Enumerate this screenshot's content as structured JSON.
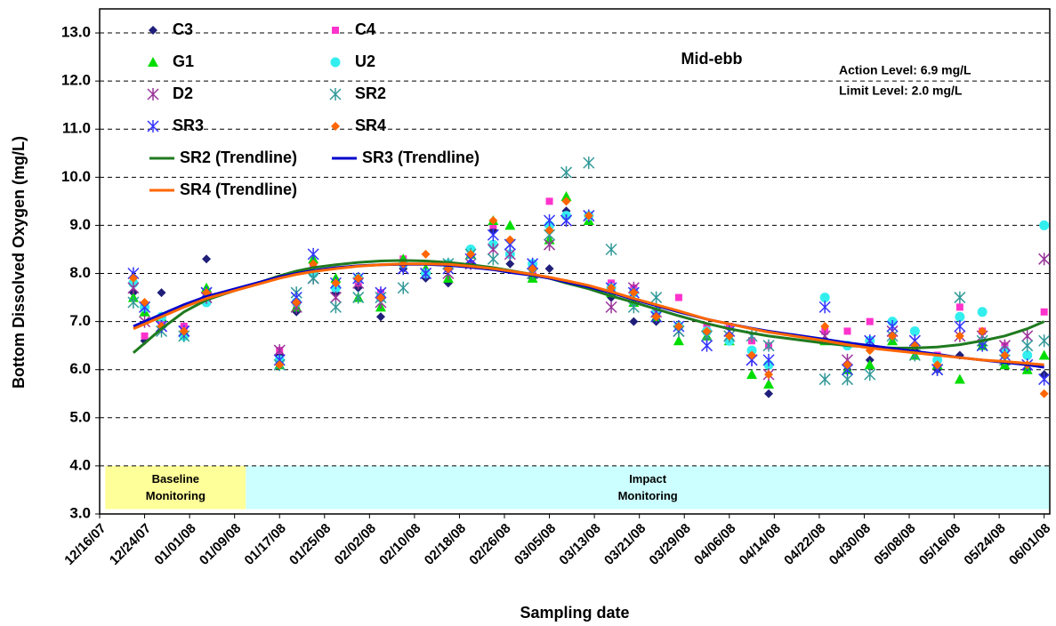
{
  "chart_data": {
    "type": "scatter",
    "title": "Mid-ebb",
    "annotations": [
      "Action Level: 6.9 mg/L",
      "Limit Level: 2.0 mg/L"
    ],
    "x_label": "Sampling date",
    "y_label": "Bottom Dissolved Oxygen (mg/L)",
    "xlim": [
      "12/16/07",
      "06/02/08"
    ],
    "xticks": [
      "12/16/07",
      "12/24/07",
      "01/01/08",
      "01/09/08",
      "01/17/08",
      "01/25/08",
      "02/02/08",
      "02/10/08",
      "02/18/08",
      "02/26/08",
      "03/05/08",
      "03/13/08",
      "03/21/08",
      "03/29/08",
      "04/06/08",
      "04/14/08",
      "04/22/08",
      "04/30/08",
      "05/08/08",
      "05/16/08",
      "05/24/08",
      "06/01/08"
    ],
    "ylim": [
      3,
      13.5
    ],
    "yticks": [
      {
        "value": 3,
        "label": "3.0"
      },
      {
        "value": 4,
        "label": "4.0"
      },
      {
        "value": 5,
        "label": "5.0"
      },
      {
        "value": 6,
        "label": "6.0"
      },
      {
        "value": 7,
        "label": "7.0"
      },
      {
        "value": 8,
        "label": "8.0"
      },
      {
        "value": 9,
        "label": "9.0"
      },
      {
        "value": 10,
        "label": "10.0"
      },
      {
        "value": 11,
        "label": "11.0"
      },
      {
        "value": 12,
        "label": "12.0"
      },
      {
        "value": 13,
        "label": "13.0"
      }
    ],
    "grid": true,
    "legend": "top-left",
    "regions": [
      {
        "label": "Baseline Monitoring",
        "x": [
          "12/17/07",
          "01/11/08"
        ],
        "y": [
          3.1,
          4.0
        ],
        "color": "#ffff99"
      },
      {
        "label": "Impact Monitoring",
        "x": [
          "01/11/08",
          "06/02/08"
        ],
        "y": [
          3.1,
          4.0
        ],
        "color": "#ccffff"
      }
    ],
    "x": [
      "12/22/07",
      "12/24/07",
      "12/27/07",
      "12/31/07",
      "01/04/08",
      "01/17/08",
      "01/20/08",
      "01/23/08",
      "01/27/08",
      "01/31/08",
      "02/04/08",
      "02/08/08",
      "02/12/08",
      "02/16/08",
      "02/20/08",
      "02/24/08",
      "02/27/08",
      "03/02/08",
      "03/05/08",
      "03/08/08",
      "03/12/08",
      "03/16/08",
      "03/20/08",
      "03/24/08",
      "03/28/08",
      "04/02/08",
      "04/06/08",
      "04/10/08",
      "04/13/08",
      "04/23/08",
      "04/27/08",
      "05/01/08",
      "05/05/08",
      "05/09/08",
      "05/13/08",
      "05/17/08",
      "05/21/08",
      "05/25/08",
      "05/29/08",
      "06/01/08"
    ],
    "series": [
      {
        "name": "C3",
        "color": "#1f1f7a",
        "marker": "diamond",
        "values": [
          7.6,
          6.6,
          7.6,
          6.9,
          8.3,
          6.3,
          7.2,
          8.0,
          7.6,
          7.7,
          7.1,
          8.1,
          7.9,
          7.8,
          8.2,
          8.9,
          8.2,
          7.9,
          8.1,
          9.3,
          9.2,
          7.5,
          7.0,
          7.0,
          6.9,
          6.8,
          6.7,
          6.3,
          5.5,
          6.6,
          6.0,
          6.2,
          6.7,
          6.4,
          6.0,
          6.3,
          6.5,
          6.1,
          6.0,
          5.9
        ]
      },
      {
        "name": "C4",
        "color": "#ff33cc",
        "marker": "square",
        "values": [
          7.8,
          6.7,
          7.0,
          6.9,
          7.5,
          6.4,
          7.3,
          8.2,
          7.8,
          7.8,
          7.6,
          8.3,
          8.0,
          8.2,
          8.4,
          9.0,
          8.4,
          8.0,
          9.5,
          9.2,
          9.2,
          7.8,
          7.7,
          7.2,
          7.5,
          6.9,
          6.9,
          6.6,
          6.5,
          6.8,
          6.8,
          7.0,
          6.7,
          6.8,
          6.3,
          7.3,
          6.8,
          6.5,
          6.3,
          7.2
        ]
      },
      {
        "name": "G1",
        "color": "#00dd00",
        "marker": "triangle",
        "values": [
          7.5,
          7.2,
          7.1,
          6.8,
          7.7,
          6.1,
          7.3,
          8.3,
          7.9,
          7.5,
          7.3,
          8.3,
          8.1,
          7.9,
          8.4,
          9.1,
          9.0,
          7.9,
          8.7,
          9.6,
          9.1,
          7.6,
          7.4,
          7.1,
          6.6,
          6.7,
          6.6,
          5.9,
          5.7,
          6.6,
          6.0,
          6.1,
          6.6,
          6.3,
          6.1,
          5.8,
          6.5,
          6.1,
          6.0,
          6.3
        ]
      },
      {
        "name": "U2",
        "color": "#33eeee",
        "marker": "circle",
        "values": [
          7.8,
          7.3,
          7.1,
          6.7,
          7.4,
          6.2,
          7.4,
          8.0,
          7.7,
          7.9,
          7.5,
          8.2,
          8.0,
          8.2,
          8.5,
          8.6,
          8.4,
          8.2,
          9.0,
          9.2,
          9.2,
          7.7,
          7.6,
          7.2,
          6.9,
          6.8,
          6.6,
          6.4,
          6.1,
          7.5,
          6.5,
          6.6,
          7.0,
          6.8,
          6.2,
          7.1,
          7.2,
          6.4,
          6.3,
          9.0
        ]
      },
      {
        "name": "D2",
        "color": "#993399",
        "marker": "star",
        "values": [
          7.7,
          7.0,
          6.9,
          6.8,
          7.5,
          6.4,
          7.3,
          7.9,
          7.5,
          7.8,
          7.4,
          8.1,
          8.0,
          8.0,
          8.2,
          8.5,
          8.4,
          8.0,
          8.6,
          9.1,
          9.2,
          7.3,
          7.7,
          7.2,
          6.8,
          6.7,
          6.7,
          6.2,
          5.9,
          6.7,
          6.2,
          6.6,
          6.8,
          6.6,
          6.0,
          6.7,
          6.7,
          6.5,
          6.7,
          8.3
        ]
      },
      {
        "name": "SR2",
        "color": "#339999",
        "marker": "star",
        "values": [
          7.4,
          7.3,
          6.8,
          6.7,
          7.6,
          6.1,
          7.6,
          7.9,
          7.3,
          7.5,
          7.5,
          7.7,
          8.0,
          8.2,
          8.4,
          8.3,
          8.6,
          8.0,
          8.8,
          10.1,
          10.3,
          8.5,
          7.3,
          7.5,
          6.8,
          6.7,
          6.7,
          6.7,
          6.5,
          5.8,
          5.8,
          5.9,
          6.7,
          6.3,
          6.0,
          7.5,
          6.6,
          6.2,
          6.5,
          6.6
        ]
      },
      {
        "name": "SR3",
        "color": "#3333ff",
        "marker": "star",
        "values": [
          8.0,
          7.3,
          6.9,
          6.8,
          7.6,
          6.2,
          7.5,
          8.4,
          7.8,
          7.9,
          7.6,
          8.1,
          8.0,
          8.1,
          8.3,
          8.8,
          8.6,
          8.2,
          9.1,
          9.1,
          9.2,
          7.7,
          7.6,
          7.1,
          6.9,
          6.5,
          6.8,
          6.2,
          6.2,
          7.3,
          6.0,
          6.6,
          6.9,
          6.6,
          6.0,
          6.9,
          6.5,
          6.3,
          6.1,
          5.8
        ]
      },
      {
        "name": "SR4",
        "color": "#ff6600",
        "marker": "diamond",
        "values": [
          7.9,
          7.4,
          6.9,
          6.8,
          7.6,
          6.1,
          7.4,
          8.2,
          7.8,
          7.9,
          7.5,
          8.2,
          8.4,
          8.1,
          8.4,
          9.1,
          8.7,
          8.1,
          8.9,
          9.5,
          9.2,
          7.7,
          7.6,
          7.1,
          6.9,
          6.8,
          6.7,
          6.3,
          5.9,
          6.9,
          6.1,
          6.4,
          6.7,
          6.5,
          6.1,
          6.7,
          6.8,
          6.3,
          6.1,
          5.5
        ]
      },
      {
        "name": "SR2 (Trendline)",
        "color": "#1f7a1f",
        "marker": "line",
        "values": [
          6.35,
          6.55,
          6.85,
          7.2,
          7.45,
          7.95,
          8.05,
          8.12,
          8.18,
          8.23,
          8.26,
          8.27,
          8.26,
          8.23,
          8.18,
          8.12,
          8.06,
          7.98,
          7.9,
          7.8,
          7.68,
          7.53,
          7.4,
          7.26,
          7.12,
          6.96,
          6.85,
          6.76,
          6.7,
          6.55,
          6.5,
          6.47,
          6.45,
          6.45,
          6.47,
          6.52,
          6.6,
          6.7,
          6.85,
          7.0
        ]
      },
      {
        "name": "SR3 (Trendline)",
        "color": "#0000cc",
        "marker": "line",
        "values": [
          6.9,
          7.0,
          7.15,
          7.35,
          7.52,
          7.93,
          8.0,
          8.06,
          8.12,
          8.16,
          8.18,
          8.19,
          8.19,
          8.17,
          8.13,
          8.08,
          8.02,
          7.96,
          7.9,
          7.82,
          7.72,
          7.6,
          7.46,
          7.33,
          7.2,
          7.05,
          6.95,
          6.86,
          6.8,
          6.63,
          6.56,
          6.5,
          6.44,
          6.38,
          6.32,
          6.25,
          6.2,
          6.15,
          6.1,
          6.05
        ]
      },
      {
        "name": "SR4 (Trendline)",
        "color": "#ff6600",
        "marker": "line",
        "values": [
          6.85,
          6.95,
          7.1,
          7.3,
          7.48,
          7.9,
          7.98,
          8.04,
          8.1,
          8.15,
          8.18,
          8.2,
          8.2,
          8.19,
          8.15,
          8.1,
          8.05,
          7.98,
          7.92,
          7.85,
          7.75,
          7.62,
          7.48,
          7.35,
          7.22,
          7.05,
          6.95,
          6.85,
          6.78,
          6.6,
          6.52,
          6.45,
          6.4,
          6.35,
          6.3,
          6.25,
          6.2,
          6.17,
          6.13,
          6.1
        ]
      }
    ]
  }
}
